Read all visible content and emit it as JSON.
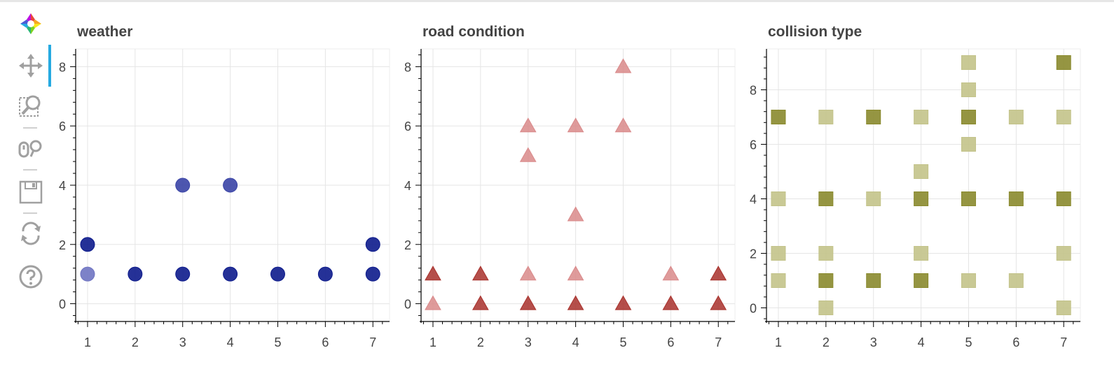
{
  "toolbar": {
    "tools": [
      {
        "name": "bokeh-logo-icon"
      },
      {
        "name": "pan-icon"
      },
      {
        "name": "box-zoom-icon"
      },
      {
        "name": "wheel-zoom-icon"
      },
      {
        "name": "save-icon"
      },
      {
        "name": "reset-icon"
      },
      {
        "name": "help-icon"
      }
    ],
    "active_color": "#26aae1"
  },
  "chart_data": [
    {
      "type": "scatter",
      "title": "weather",
      "marker": "circle",
      "xlim": [
        0.75,
        7.35
      ],
      "ylim": [
        -0.6,
        8.6
      ],
      "xticks": [
        1,
        2,
        3,
        4,
        5,
        6,
        7
      ],
      "yticks": [
        0,
        2,
        4,
        6,
        8
      ],
      "colors": {
        "dark": "#0d1b8c",
        "light": "#6f74c2",
        "mid": "#3a44a6"
      },
      "points": [
        {
          "x": 1,
          "y": 2,
          "shade": "dark"
        },
        {
          "x": 1,
          "y": 1,
          "shade": "light"
        },
        {
          "x": 2,
          "y": 1,
          "shade": "dark"
        },
        {
          "x": 3,
          "y": 4,
          "shade": "mid"
        },
        {
          "x": 3,
          "y": 1,
          "shade": "dark"
        },
        {
          "x": 4,
          "y": 4,
          "shade": "mid"
        },
        {
          "x": 4,
          "y": 1,
          "shade": "dark"
        },
        {
          "x": 5,
          "y": 1,
          "shade": "dark"
        },
        {
          "x": 6,
          "y": 1,
          "shade": "dark"
        },
        {
          "x": 7,
          "y": 2,
          "shade": "dark"
        },
        {
          "x": 7,
          "y": 1,
          "shade": "dark"
        }
      ]
    },
    {
      "type": "scatter",
      "title": "road condition",
      "marker": "triangle",
      "xlim": [
        0.75,
        7.35
      ],
      "ylim": [
        -0.6,
        8.6
      ],
      "xticks": [
        1,
        2,
        3,
        4,
        5,
        6,
        7
      ],
      "yticks": [
        0,
        2,
        4,
        6,
        8
      ],
      "colors": {
        "dark": "#a8302b",
        "light": "#d9898a"
      },
      "points": [
        {
          "x": 1,
          "y": 1,
          "shade": "dark"
        },
        {
          "x": 1,
          "y": 0,
          "shade": "light"
        },
        {
          "x": 2,
          "y": 1,
          "shade": "dark"
        },
        {
          "x": 2,
          "y": 0,
          "shade": "dark"
        },
        {
          "x": 3,
          "y": 6,
          "shade": "light"
        },
        {
          "x": 3,
          "y": 5,
          "shade": "light"
        },
        {
          "x": 3,
          "y": 1,
          "shade": "light"
        },
        {
          "x": 3,
          "y": 0,
          "shade": "dark"
        },
        {
          "x": 4,
          "y": 6,
          "shade": "light"
        },
        {
          "x": 4,
          "y": 3,
          "shade": "light"
        },
        {
          "x": 4,
          "y": 1,
          "shade": "light"
        },
        {
          "x": 4,
          "y": 0,
          "shade": "dark"
        },
        {
          "x": 5,
          "y": 8,
          "shade": "light"
        },
        {
          "x": 5,
          "y": 6,
          "shade": "light"
        },
        {
          "x": 5,
          "y": 0,
          "shade": "dark"
        },
        {
          "x": 6,
          "y": 1,
          "shade": "light"
        },
        {
          "x": 6,
          "y": 0,
          "shade": "dark"
        },
        {
          "x": 7,
          "y": 1,
          "shade": "dark"
        },
        {
          "x": 7,
          "y": 0,
          "shade": "dark"
        }
      ]
    },
    {
      "type": "scatter",
      "title": "collision type",
      "marker": "square",
      "xlim": [
        0.75,
        7.35
      ],
      "ylim": [
        -0.5,
        9.5
      ],
      "xticks": [
        1,
        2,
        3,
        4,
        5,
        6,
        7
      ],
      "yticks": [
        0,
        2,
        4,
        6,
        8
      ],
      "colors": {
        "dark": "#8a8a2e",
        "light": "#c3c38a"
      },
      "points": [
        {
          "x": 1,
          "y": 7,
          "shade": "dark"
        },
        {
          "x": 1,
          "y": 4,
          "shade": "light"
        },
        {
          "x": 1,
          "y": 2,
          "shade": "light"
        },
        {
          "x": 1,
          "y": 1,
          "shade": "light"
        },
        {
          "x": 2,
          "y": 7,
          "shade": "light"
        },
        {
          "x": 2,
          "y": 4,
          "shade": "dark"
        },
        {
          "x": 2,
          "y": 2,
          "shade": "light"
        },
        {
          "x": 2,
          "y": 1,
          "shade": "dark"
        },
        {
          "x": 2,
          "y": 0,
          "shade": "light"
        },
        {
          "x": 3,
          "y": 7,
          "shade": "dark"
        },
        {
          "x": 3,
          "y": 4,
          "shade": "light"
        },
        {
          "x": 3,
          "y": 1,
          "shade": "dark"
        },
        {
          "x": 4,
          "y": 7,
          "shade": "light"
        },
        {
          "x": 4,
          "y": 5,
          "shade": "light"
        },
        {
          "x": 4,
          "y": 4,
          "shade": "dark"
        },
        {
          "x": 4,
          "y": 2,
          "shade": "light"
        },
        {
          "x": 4,
          "y": 1,
          "shade": "dark"
        },
        {
          "x": 5,
          "y": 9,
          "shade": "light"
        },
        {
          "x": 5,
          "y": 8,
          "shade": "light"
        },
        {
          "x": 5,
          "y": 7,
          "shade": "dark"
        },
        {
          "x": 5,
          "y": 6,
          "shade": "light"
        },
        {
          "x": 5,
          "y": 4,
          "shade": "dark"
        },
        {
          "x": 5,
          "y": 1,
          "shade": "light"
        },
        {
          "x": 6,
          "y": 7,
          "shade": "light"
        },
        {
          "x": 6,
          "y": 4,
          "shade": "dark"
        },
        {
          "x": 6,
          "y": 1,
          "shade": "light"
        },
        {
          "x": 7,
          "y": 9,
          "shade": "dark"
        },
        {
          "x": 7,
          "y": 7,
          "shade": "light"
        },
        {
          "x": 7,
          "y": 4,
          "shade": "dark"
        },
        {
          "x": 7,
          "y": 2,
          "shade": "light"
        },
        {
          "x": 7,
          "y": 0,
          "shade": "light"
        }
      ]
    }
  ]
}
